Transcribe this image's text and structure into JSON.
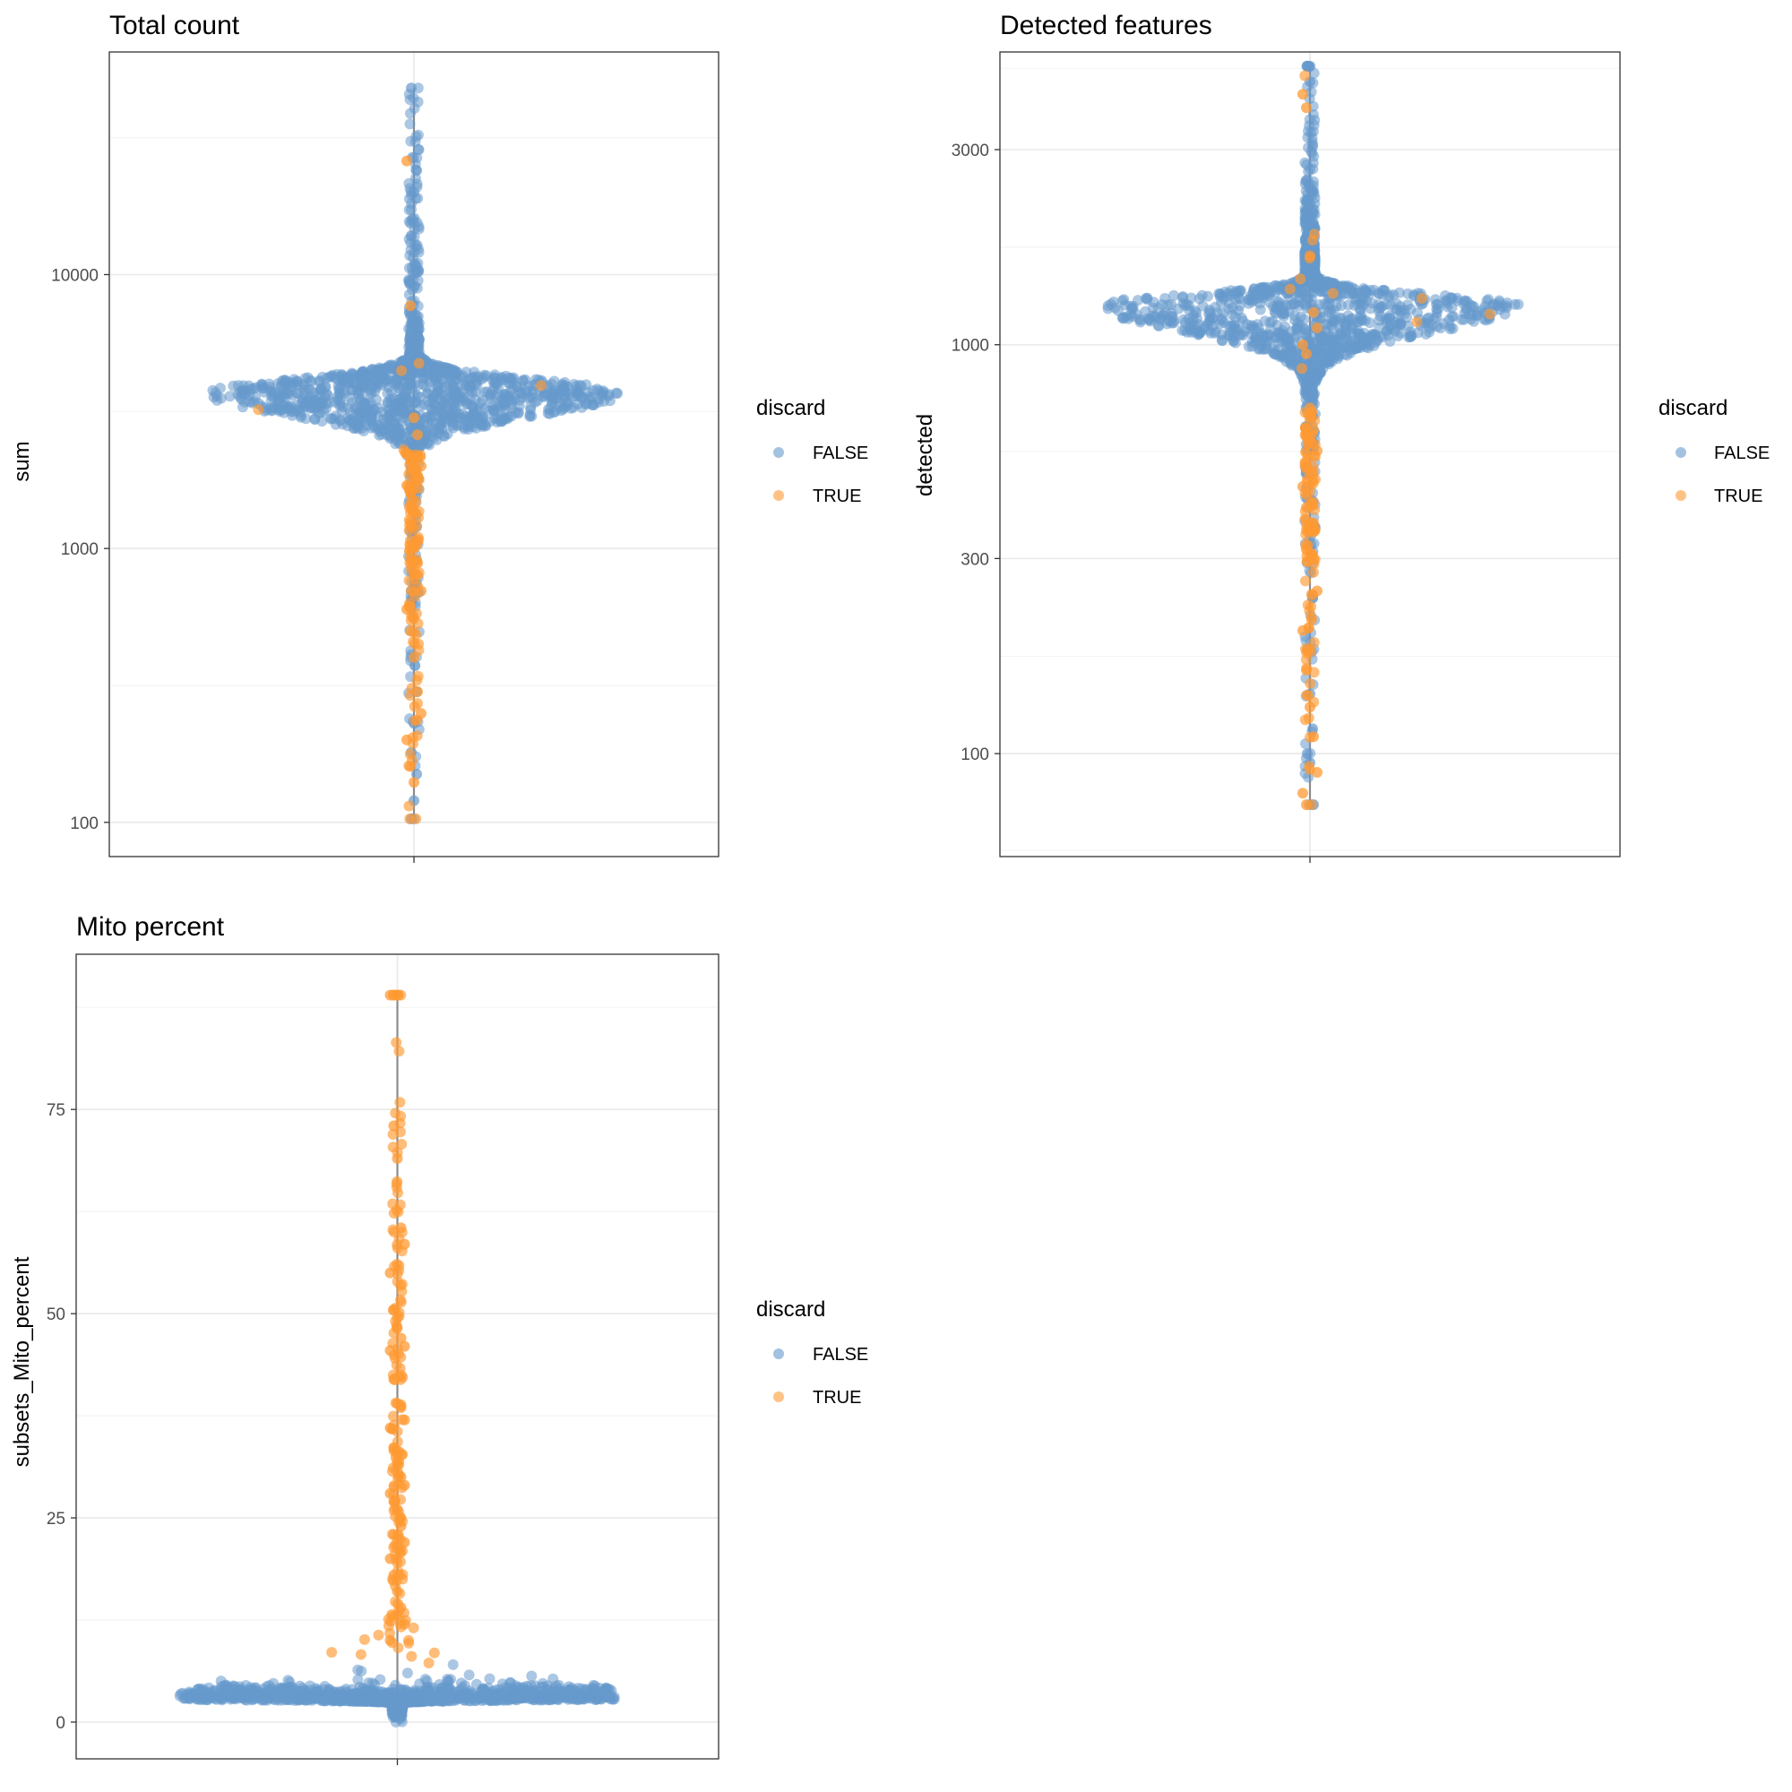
{
  "colors": {
    "false": "#6699CC",
    "true": "#FF9933",
    "median_line": "#8c8c8c",
    "grid_major": "#ebebeb",
    "grid_minor": "#f4f4f4",
    "panel_border": "#333333",
    "tick_label": "#4d4d4d"
  },
  "legend": {
    "title": "discard",
    "items": [
      {
        "label": "FALSE",
        "color_key": "false"
      },
      {
        "label": "TRUE",
        "color_key": "true"
      }
    ]
  },
  "chart_data": [
    {
      "type": "scatter",
      "subtype": "beeswarm-violin",
      "title": "Total count",
      "xlabel": "",
      "ylabel": "sum",
      "yscale": "log10",
      "ylim": [
        75,
        65000
      ],
      "yticks": [
        100,
        1000,
        10000
      ],
      "ytick_labels": [
        "100",
        "1000",
        "10000"
      ],
      "minor_breaks": [
        316.2,
        3162.3,
        31622.8
      ],
      "grid": true,
      "legend_position": "right",
      "median_whisker": [
        103,
        48000
      ],
      "distribution": {
        "center": 3700,
        "max": 48000,
        "min": 103,
        "outer_width": 0.67,
        "discard_true_below": 2300,
        "discard_true_fraction_above": 0.006
      },
      "outliers_true": [
        26000,
        7700,
        3000,
        2600,
        2000,
        1700,
        1250,
        1000,
        800,
        700,
        600,
        500,
        400,
        300,
        250,
        200,
        160,
        140
      ],
      "outliers_false": [
        103,
        120,
        150,
        180,
        230,
        300,
        700,
        900,
        1200,
        1600,
        20000,
        24000,
        48000
      ]
    },
    {
      "type": "scatter",
      "subtype": "beeswarm-violin",
      "title": "Detected features",
      "xlabel": "",
      "ylabel": "detected",
      "yscale": "log10",
      "ylim": [
        56,
        5200
      ],
      "yticks": [
        100,
        300,
        1000,
        3000
      ],
      "ytick_labels": [
        "100",
        "300",
        "1000",
        "3000"
      ],
      "minor_breaks": [
        58,
        173,
        548,
        1732,
        4743
      ],
      "grid": true,
      "legend_position": "right",
      "median_whisker": [
        75,
        4800
      ],
      "distribution": {
        "center": 1250,
        "max": 4800,
        "min": 75,
        "outer_width": 0.68,
        "discard_true_below": 700,
        "discard_true_fraction_above": 0.006
      },
      "outliers_true": [
        4100,
        3800,
        1650,
        1200,
        1100,
        1000,
        950,
        700,
        620,
        550,
        450,
        400,
        350,
        300,
        250,
        200,
        160,
        130,
        110,
        90,
        80,
        75
      ],
      "outliers_false": [
        4800,
        4400,
        580,
        420,
        320,
        240,
        180,
        140,
        115,
        100,
        95
      ]
    },
    {
      "type": "scatter",
      "subtype": "beeswarm-violin",
      "title": "Mito percent",
      "xlabel": "",
      "ylabel": "subsets_Mito_percent",
      "yscale": "linear",
      "ylim": [
        -4.5,
        94
      ],
      "yticks": [
        0,
        25,
        50,
        75
      ],
      "ytick_labels": [
        "0",
        "25",
        "50",
        "75"
      ],
      "minor_breaks": [
        12.5,
        37.5,
        62.5,
        87.5
      ],
      "grid": true,
      "legend_position": "right",
      "median_whisker": [
        0,
        89
      ],
      "distribution": {
        "center": 2.8,
        "max": 89,
        "min": 0,
        "outer_width": 0.68,
        "discard_true_above": 7.2,
        "discard_true_fraction_below": 0.0
      },
      "outliers_true": [
        89,
        73,
        69,
        60.5,
        58.5,
        55,
        50.5,
        49.5,
        47,
        46,
        45.5,
        42,
        39,
        38.5,
        37,
        36,
        33.5,
        31.5,
        30,
        29,
        28,
        27,
        26,
        24,
        22,
        20,
        18,
        16,
        14,
        12,
        10
      ],
      "outliers_false": []
    }
  ]
}
